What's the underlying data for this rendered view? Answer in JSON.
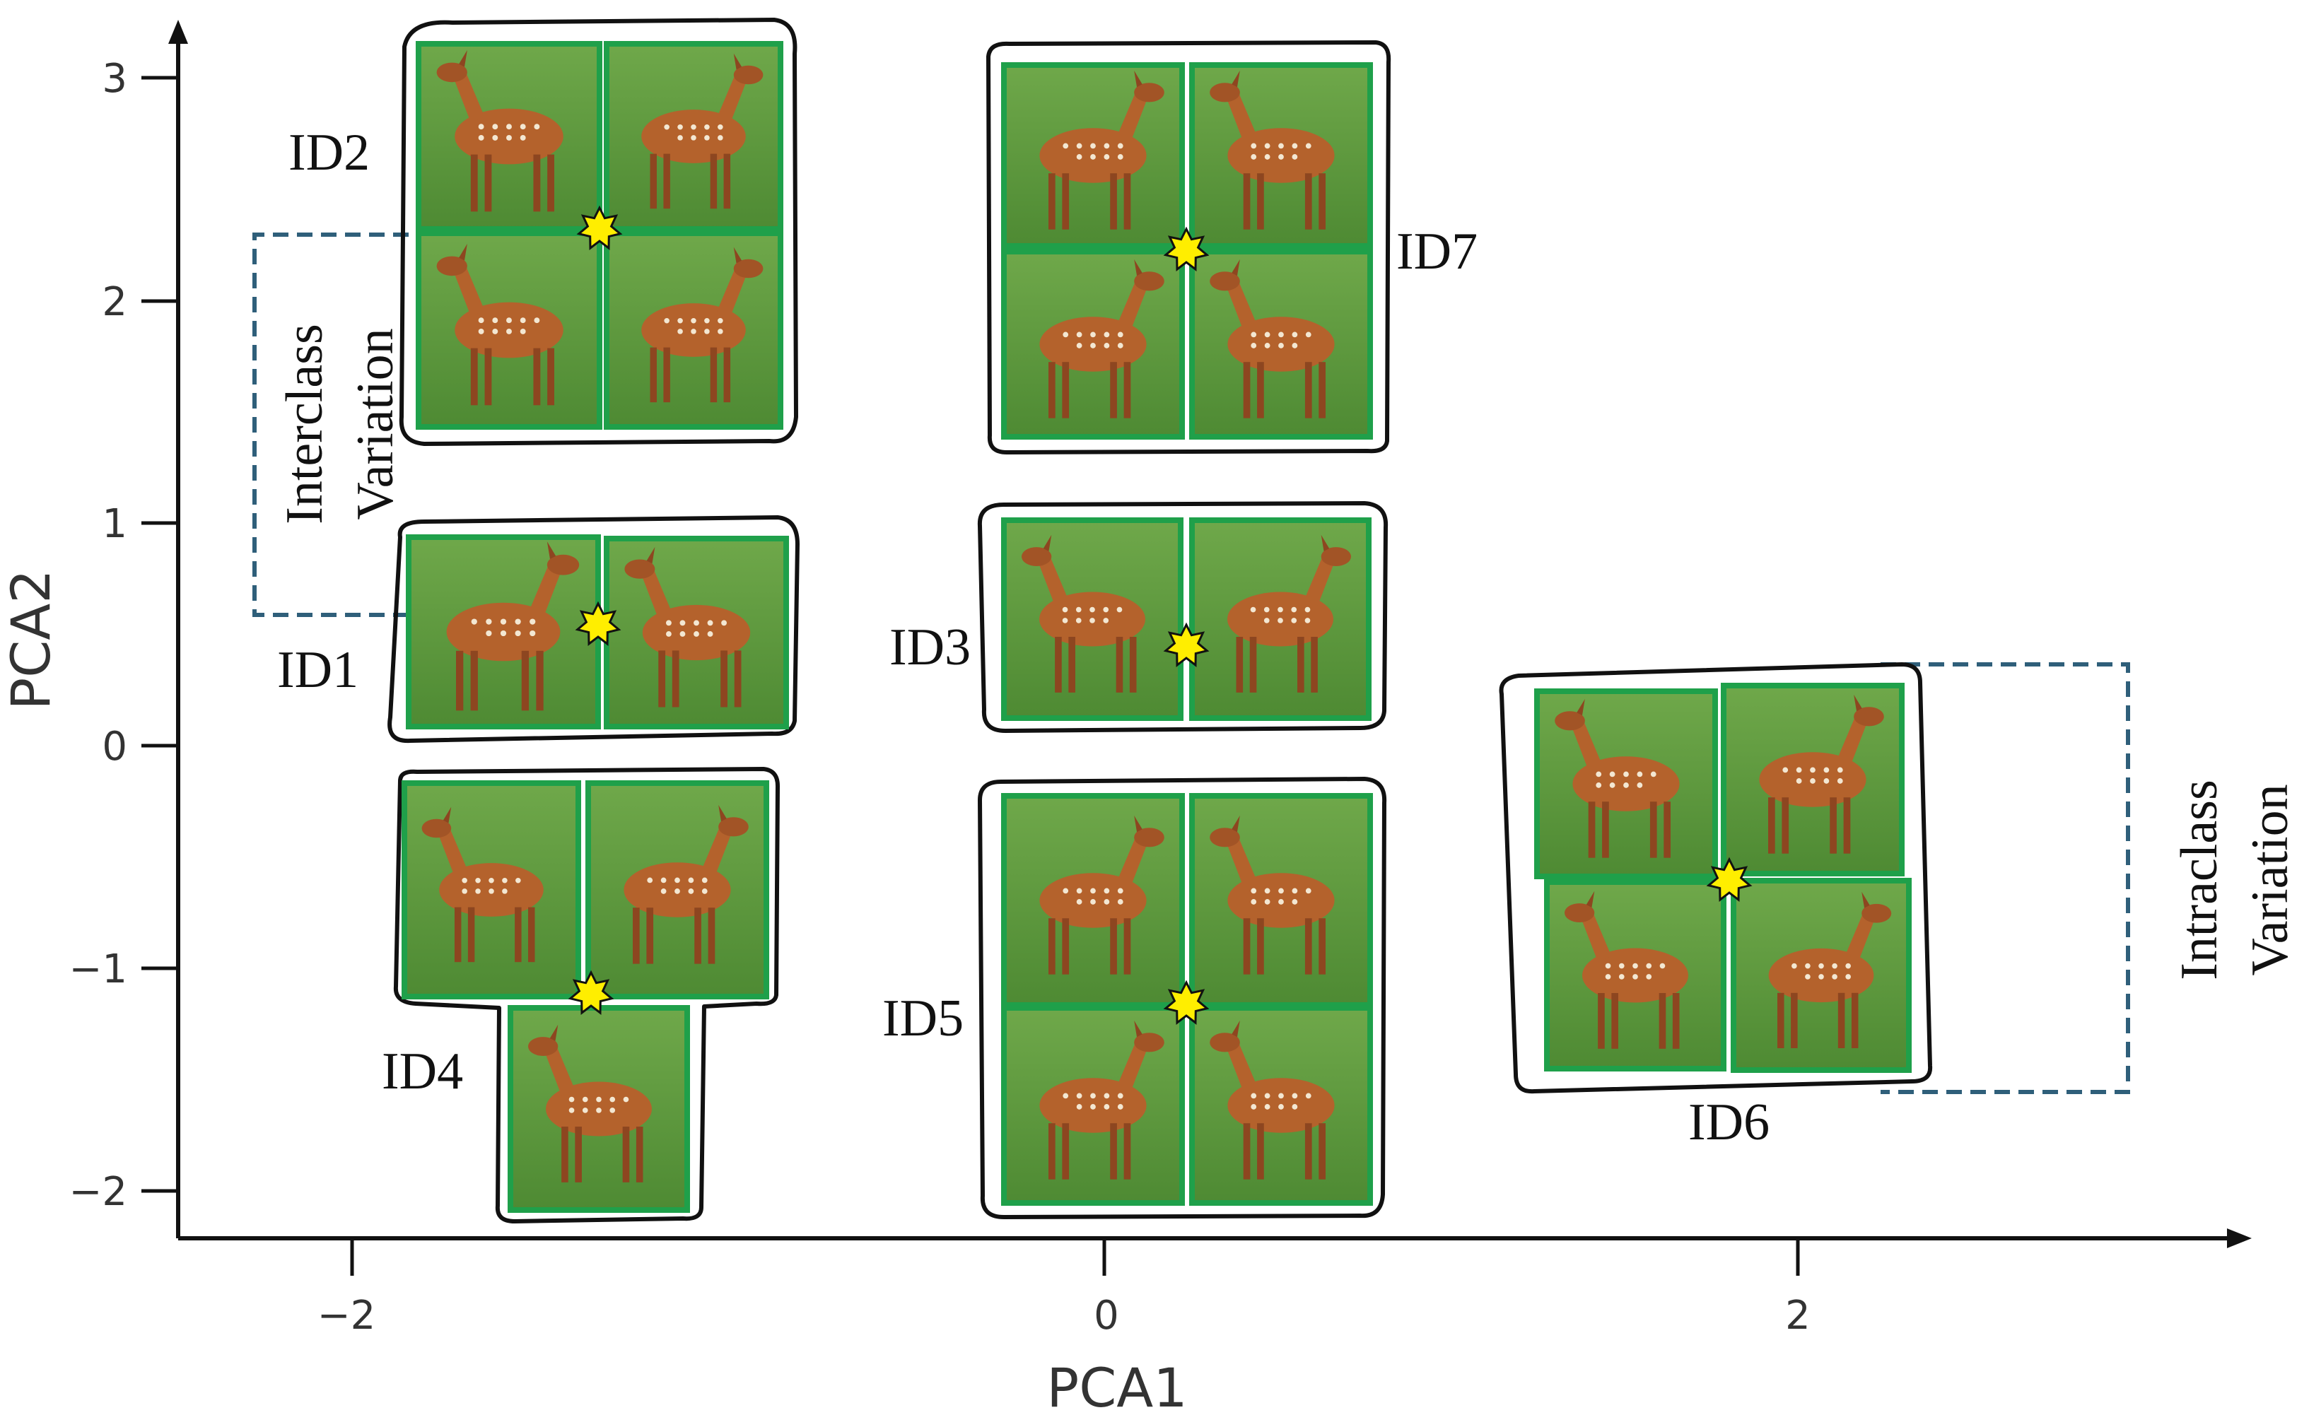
{
  "axes": {
    "x_title": "PCA1",
    "y_title": "PCA2",
    "x_ticks": [
      "−2",
      "0",
      "2"
    ],
    "y_ticks": [
      "3",
      "2",
      "1",
      "0",
      "−1",
      "−2"
    ]
  },
  "groups": [
    {
      "label": "ID2",
      "photos": 4
    },
    {
      "label": "ID1",
      "photos": 2
    },
    {
      "label": "ID4",
      "photos": 3
    },
    {
      "label": "ID7",
      "photos": 4
    },
    {
      "label": "ID3",
      "photos": 2
    },
    {
      "label": "ID5",
      "photos": 4
    },
    {
      "label": "ID6",
      "photos": 4
    }
  ],
  "annotations": {
    "interclass": [
      "Interclass",
      "Variation"
    ],
    "intraclass": [
      "Intraclass",
      "Variation"
    ]
  },
  "colors": {
    "photo_border": "#1fa04a",
    "centroid_star": "#ffee00",
    "bracket": "#2f5f7a",
    "grass": "#5f9a3c",
    "deer": "#b4622c"
  },
  "icons": {
    "centroid": "star-icon",
    "photo": "deer-photo"
  }
}
